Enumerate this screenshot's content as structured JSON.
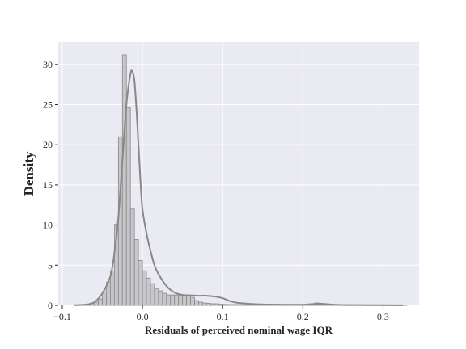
{
  "chart_data": {
    "type": "bar",
    "subtype": "histogram with kernel density curve",
    "title": "",
    "xlabel": "Residuals of perceived nominal wage IQR",
    "ylabel": "Density",
    "xlim": [
      -0.105,
      0.345
    ],
    "ylim": [
      0,
      32.8
    ],
    "x_ticks": [
      -0.1,
      0.0,
      0.1,
      0.2,
      0.3
    ],
    "x_tick_labels": [
      "−0.1",
      "0.0",
      "0.1",
      "0.2",
      "0.3"
    ],
    "y_ticks": [
      0,
      5,
      10,
      15,
      20,
      25,
      30
    ],
    "y_tick_labels": [
      "0",
      "5",
      "10",
      "15",
      "20",
      "25",
      "30"
    ],
    "grid": true,
    "legend": "none",
    "colors": {
      "plot_background": "#eaeaf2",
      "grid": "#ffffff",
      "bar_fill": "#c0c0c6",
      "bar_edge": "#8a8a8a",
      "kde_line": "#888888"
    },
    "histogram": {
      "bin_edges_start": -0.08,
      "bin_width": 0.005,
      "densities": [
        0.05,
        0.1,
        0.15,
        0.3,
        0.4,
        0.8,
        1.7,
        2.9,
        4.3,
        10.1,
        21.0,
        31.2,
        24.6,
        12.0,
        8.2,
        5.6,
        4.3,
        3.4,
        2.7,
        2.1,
        1.8,
        1.5,
        1.3,
        1.3,
        1.3,
        1.3,
        1.2,
        1.2,
        1.0,
        0.6,
        0.4,
        0.3,
        0.25,
        0.2,
        0.2,
        0.15,
        0.12,
        0.1,
        0.1,
        0.1,
        0.08,
        0.08,
        0.08,
        0.08,
        0.08,
        0.06,
        0.06,
        0.06,
        0.05,
        0.05,
        0.05,
        0.05,
        0.05,
        0.05,
        0.05,
        0.05,
        0.05,
        0.05,
        0.05,
        0.3,
        0.25,
        0.1,
        0.05,
        0.05,
        0.05,
        0.05,
        0.05,
        0.05,
        0.05,
        0.05,
        0.03,
        0.03,
        0.03,
        0.03,
        0.03,
        0.03,
        0.02,
        0.02,
        0.02,
        0.02,
        0.02,
        0.02
      ]
    },
    "kde": {
      "x": [
        -0.085,
        -0.07,
        -0.06,
        -0.05,
        -0.04,
        -0.035,
        -0.03,
        -0.025,
        -0.02,
        -0.015,
        -0.0125,
        -0.01,
        -0.0075,
        -0.005,
        -0.0025,
        0.0,
        0.005,
        0.01,
        0.015,
        0.02,
        0.03,
        0.04,
        0.05,
        0.06,
        0.07,
        0.08,
        0.09,
        0.1,
        0.11,
        0.12,
        0.14,
        0.16,
        0.18,
        0.2,
        0.22,
        0.24,
        0.26,
        0.28,
        0.3,
        0.325
      ],
      "y": [
        0.02,
        0.1,
        0.4,
        1.5,
        3.6,
        6.5,
        11.0,
        18.0,
        25.0,
        28.8,
        29.1,
        28.0,
        24.5,
        20.0,
        15.5,
        12.0,
        9.0,
        6.8,
        5.0,
        3.9,
        2.4,
        1.6,
        1.3,
        1.25,
        1.2,
        1.2,
        1.1,
        0.9,
        0.5,
        0.3,
        0.15,
        0.1,
        0.08,
        0.08,
        0.2,
        0.08,
        0.04,
        0.03,
        0.02,
        0.01
      ]
    }
  }
}
